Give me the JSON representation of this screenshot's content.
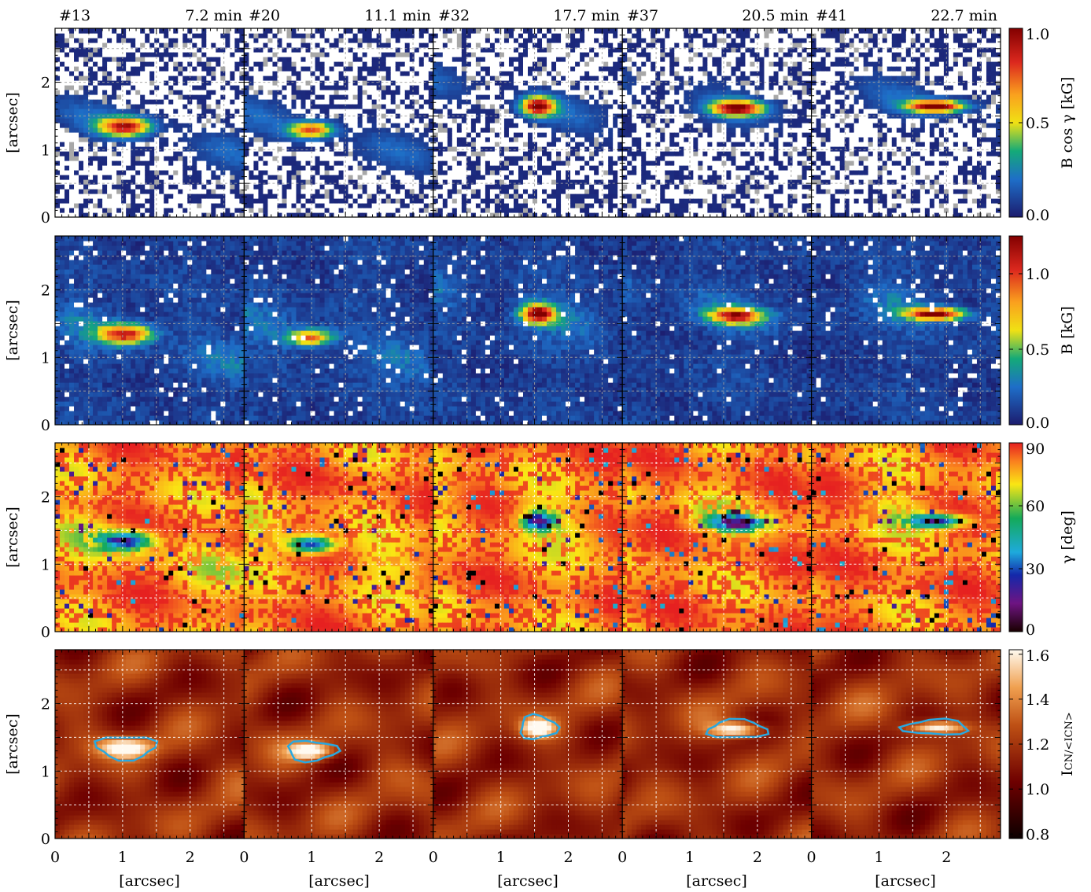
{
  "figure": {
    "columns": [
      {
        "frame": "#13",
        "time": "7.2 min"
      },
      {
        "frame": "#20",
        "time": "11.1 min"
      },
      {
        "frame": "#32",
        "time": "17.7 min"
      },
      {
        "frame": "#37",
        "time": "20.5 min"
      },
      {
        "frame": "#41",
        "time": "22.7 min"
      }
    ],
    "x_label": "[arcsec]",
    "y_label": "[arcsec]"
  },
  "chart_data": [
    {
      "type": "heatmap",
      "row": 1,
      "quantity": "B cos γ",
      "colorbar_label_main": "B cos γ",
      "colorbar_label_unit": "[kG]",
      "colormap": "blue-green-yellow-red (white = masked, gray = opposite polarity)",
      "clim": [
        0.0,
        1.0
      ],
      "colorbar_ticks": [
        "0.0",
        "0.5",
        "1.0"
      ],
      "colorbar_tick_values": [
        0.0,
        0.5,
        1.0
      ],
      "xlim": [
        0,
        2.8
      ],
      "ylim": [
        0,
        2.8
      ],
      "x_ticks": [
        0,
        1,
        2
      ],
      "y_ticks": [
        0,
        1,
        2
      ],
      "grid": true,
      "peak_values": [
        0.85,
        0.75,
        0.95,
        0.9,
        1.0
      ]
    },
    {
      "type": "heatmap",
      "row": 2,
      "quantity": "B",
      "colorbar_label_main": "B",
      "colorbar_label_unit": "[kG]",
      "colormap": "blue-green-yellow-red",
      "clim": [
        0.0,
        1.25
      ],
      "colorbar_ticks": [
        "0.0",
        "0.5",
        "1.0"
      ],
      "colorbar_tick_values": [
        0.0,
        0.5,
        1.0
      ],
      "xlim": [
        0,
        2.8
      ],
      "ylim": [
        0,
        2.8
      ],
      "x_ticks": [
        0,
        1,
        2
      ],
      "y_ticks": [
        0,
        1,
        2
      ],
      "grid": true,
      "peak_values": [
        1.0,
        0.85,
        1.2,
        1.0,
        1.2
      ]
    },
    {
      "type": "heatmap",
      "row": 3,
      "quantity": "γ",
      "colorbar_label_main": "γ",
      "colorbar_label_unit": "[deg]",
      "colormap": "black-purple-blue-green-yellow-red",
      "clim": [
        0,
        90
      ],
      "colorbar_ticks": [
        "0",
        "30",
        "60",
        "90"
      ],
      "colorbar_tick_values": [
        0,
        30,
        60,
        90
      ],
      "xlim": [
        0,
        2.8
      ],
      "ylim": [
        0,
        2.8
      ],
      "x_ticks": [
        0,
        1,
        2
      ],
      "y_ticks": [
        0,
        1,
        2
      ],
      "grid": true
    },
    {
      "type": "heatmap",
      "row": 4,
      "quantity": "I_CN/<I_CN>",
      "colorbar_label_main": "I",
      "colorbar_label_unit": "CN/<ICN>",
      "colormap": "black-red-orange-white",
      "clim": [
        0.78,
        1.62
      ],
      "colorbar_ticks": [
        "0.8",
        "1.0",
        "1.2",
        "1.4",
        "1.6"
      ],
      "colorbar_tick_values": [
        0.8,
        1.0,
        1.2,
        1.4,
        1.6
      ],
      "xlim": [
        0,
        2.8
      ],
      "ylim": [
        0,
        2.8
      ],
      "x_ticks": [
        0,
        1,
        2
      ],
      "y_ticks": [
        0,
        1,
        2
      ],
      "grid": true,
      "contour_color": "#29a8e0"
    }
  ]
}
